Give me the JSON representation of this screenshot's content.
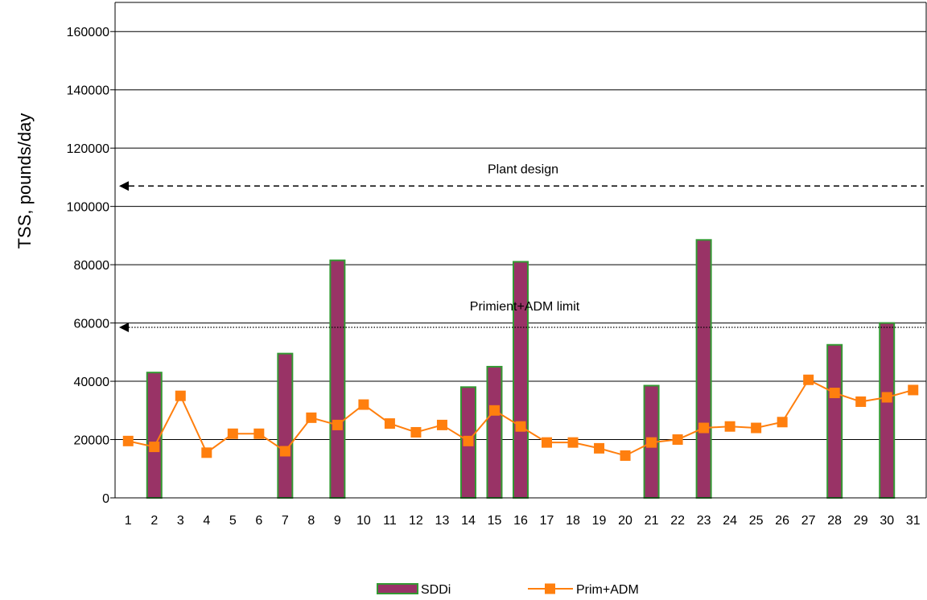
{
  "chart_data": {
    "type": "bar",
    "title": "",
    "xlabel": "",
    "ylabel": "TSS, pounds/day",
    "ylim": [
      0,
      170000
    ],
    "yticks": [
      0,
      20000,
      40000,
      60000,
      80000,
      100000,
      120000,
      140000,
      160000
    ],
    "grid": "horizontal",
    "legend_position": "bottom",
    "categories": [
      "1",
      "2",
      "3",
      "4",
      "5",
      "6",
      "7",
      "8",
      "9",
      "10",
      "11",
      "12",
      "13",
      "14",
      "15",
      "16",
      "17",
      "18",
      "19",
      "20",
      "21",
      "22",
      "23",
      "24",
      "25",
      "26",
      "27",
      "28",
      "29",
      "30",
      "31"
    ],
    "series": [
      {
        "name": "SDDi",
        "type": "bar",
        "fill_color": "#993366",
        "border_color": "#339933",
        "values": [
          null,
          43000,
          null,
          null,
          null,
          null,
          49500,
          null,
          81500,
          null,
          null,
          null,
          null,
          38000,
          45000,
          81000,
          null,
          null,
          null,
          null,
          38500,
          null,
          88500,
          null,
          null,
          null,
          null,
          52500,
          null,
          60000,
          null
        ]
      },
      {
        "name": "Prim+ADM",
        "type": "line",
        "color": "#FF7F0E",
        "marker": "square",
        "values": [
          19500,
          17500,
          35000,
          15500,
          22000,
          22000,
          16000,
          27500,
          25000,
          32000,
          25500,
          22500,
          25000,
          19500,
          30000,
          24500,
          19000,
          19000,
          17000,
          14500,
          19000,
          20000,
          24000,
          24500,
          24000,
          26000,
          40500,
          36000,
          33000,
          34500,
          37000
        ]
      }
    ],
    "reference_lines": [
      {
        "label": "Plant design",
        "value": 107000,
        "style": "dashed",
        "arrow": "left"
      },
      {
        "label": "Primient+ADM limit",
        "value": 58500,
        "style": "dotted",
        "arrow": "left"
      }
    ]
  }
}
